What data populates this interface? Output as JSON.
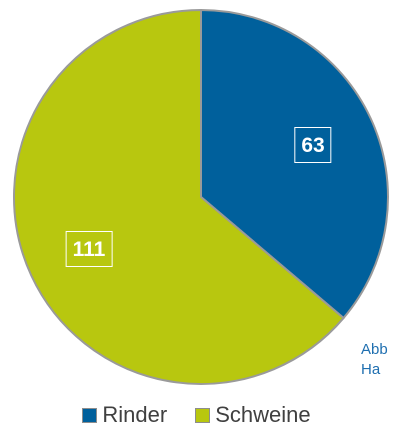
{
  "chart_data": {
    "type": "pie",
    "title": "",
    "categories": [
      "Rinder",
      "Schweine"
    ],
    "values": [
      63,
      111
    ],
    "data_labels": [
      "63",
      "111"
    ],
    "colors": [
      "#00609c",
      "#b8c70f"
    ],
    "start_angle_deg": 0,
    "direction": "clockwise",
    "legend_position": "bottom"
  },
  "side_note": {
    "line1": "Abb",
    "line2": "Ha"
  }
}
